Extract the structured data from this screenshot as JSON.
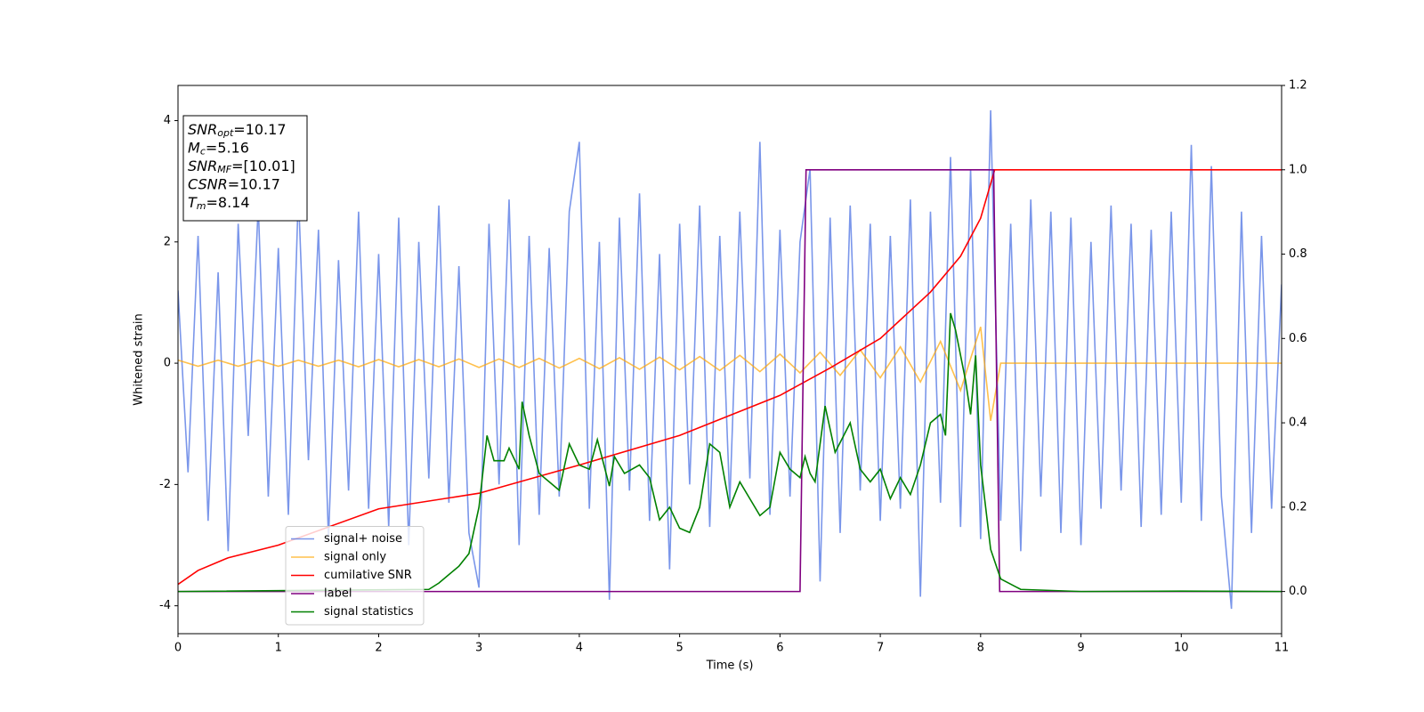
{
  "chart_data": {
    "type": "line",
    "xlabel": "Time (s)",
    "ylabel": "Whitened strain",
    "xlim": [
      0,
      11
    ],
    "xticks": [
      0,
      1,
      2,
      3,
      4,
      5,
      6,
      7,
      8,
      9,
      10,
      11
    ],
    "ylim": [
      -4.46,
      4.58
    ],
    "yticks": [
      -4,
      -2,
      0,
      2,
      4
    ],
    "y2lim": [
      -0.1,
      1.2
    ],
    "y2ticks": [
      {
        "value": 0,
        "label": "0.0"
      },
      0.2,
      0.4,
      0.6,
      0.8,
      {
        "value": 1,
        "label": "1.0"
      },
      1.2
    ],
    "legend": "lower left",
    "annotations": [
      {
        "main": "SNR",
        "sub": "opt",
        "rest": "=10.17"
      },
      {
        "main": "M",
        "sub": "c",
        "rest": "=5.16"
      },
      {
        "main": "SNR",
        "sub": "MF",
        "rest": "=[10.01]"
      },
      {
        "main": "CSNR",
        "rest": "=10.17"
      },
      {
        "main": "T",
        "sub": "m",
        "rest": "=8.14"
      }
    ],
    "series": [
      {
        "name": "signal+ noise",
        "color": "#4169e1",
        "x": [
          0,
          0.1,
          0.2,
          0.3,
          0.4,
          0.5,
          0.6,
          0.7,
          0.8,
          0.9,
          1,
          1.1,
          1.2,
          1.3,
          1.4,
          1.5,
          1.6,
          1.7,
          1.8,
          1.9,
          2,
          2.1,
          2.2,
          2.3,
          2.4,
          2.5,
          2.6,
          2.7,
          2.8,
          2.9,
          3,
          3.1,
          3.2,
          3.3,
          3.4,
          3.5,
          3.6,
          3.7,
          3.8,
          3.9,
          4,
          4.1,
          4.2,
          4.3,
          4.4,
          4.5,
          4.6,
          4.7,
          4.8,
          4.9,
          5,
          5.1,
          5.2,
          5.3,
          5.4,
          5.5,
          5.6,
          5.7,
          5.8,
          5.9,
          6,
          6.1,
          6.2,
          6.3,
          6.4,
          6.5,
          6.6,
          6.7,
          6.8,
          6.9,
          7,
          7.1,
          7.2,
          7.3,
          7.4,
          7.5,
          7.6,
          7.7,
          7.8,
          7.9,
          8,
          8.1,
          8.2,
          8.3,
          8.4,
          8.5,
          8.6,
          8.7,
          8.8,
          8.9,
          9,
          9.1,
          9.2,
          9.3,
          9.4,
          9.5,
          9.6,
          9.7,
          9.8,
          9.9,
          10,
          10.1,
          10.2,
          10.3,
          10.4,
          10.5,
          10.6,
          10.7,
          10.8,
          10.9,
          11
        ],
        "values": [
          1.2,
          -1.8,
          2.1,
          -2.6,
          1.5,
          -3.1,
          2.3,
          -1.2,
          2.6,
          -2.2,
          1.9,
          -2.5,
          2.8,
          -1.6,
          2.2,
          -2.9,
          1.7,
          -2.1,
          2.5,
          -2.4,
          1.8,
          -2.7,
          2.4,
          -3.0,
          2.0,
          -1.9,
          2.6,
          -2.3,
          1.6,
          -2.8,
          -3.7,
          2.3,
          -2.0,
          2.7,
          -3.0,
          2.1,
          -2.5,
          1.9,
          -2.2,
          2.5,
          3.65,
          -2.4,
          2.0,
          -3.9,
          2.4,
          -2.1,
          2.8,
          -2.6,
          1.8,
          -3.4,
          2.3,
          -2.0,
          2.6,
          -2.7,
          2.1,
          -2.3,
          2.5,
          -1.9,
          3.65,
          -2.5,
          2.2,
          -2.2,
          2.0,
          3.2,
          -3.6,
          2.4,
          -2.8,
          2.6,
          -2.1,
          2.3,
          -2.6,
          2.1,
          -2.4,
          2.7,
          -3.85,
          2.5,
          -2.3,
          3.4,
          -2.7,
          3.2,
          -2.9,
          4.17,
          -2.6,
          2.3,
          -3.1,
          2.7,
          -2.2,
          2.5,
          -2.8,
          2.4,
          -3.0,
          2.0,
          -2.4,
          2.6,
          -2.1,
          2.3,
          -2.7,
          2.2,
          -2.5,
          2.5,
          -2.3,
          3.6,
          -2.6,
          3.25,
          -2.2,
          -4.05,
          2.5,
          -2.8,
          2.1,
          -2.4,
          1.3
        ]
      },
      {
        "name": "signal only",
        "color": "#ffa500",
        "x": [
          0,
          0.2,
          0.4,
          0.6,
          0.8,
          1,
          1.2,
          1.4,
          1.6,
          1.8,
          2,
          2.2,
          2.4,
          2.6,
          2.8,
          3,
          3.2,
          3.4,
          3.6,
          3.8,
          4,
          4.2,
          4.4,
          4.6,
          4.8,
          5,
          5.2,
          5.4,
          5.6,
          5.8,
          6,
          6.2,
          6.4,
          6.6,
          6.8,
          7,
          7.2,
          7.4,
          7.6,
          7.8,
          8,
          8.1,
          8.2,
          11
        ],
        "values": [
          0.05,
          -0.05,
          0.05,
          -0.05,
          0.05,
          -0.05,
          0.05,
          -0.05,
          0.05,
          -0.06,
          0.06,
          -0.06,
          0.06,
          -0.06,
          0.07,
          -0.07,
          0.07,
          -0.07,
          0.08,
          -0.08,
          0.08,
          -0.09,
          0.09,
          -0.1,
          0.1,
          -0.11,
          0.11,
          -0.12,
          0.13,
          -0.14,
          0.15,
          -0.16,
          0.18,
          -0.2,
          0.22,
          -0.24,
          0.27,
          -0.31,
          0.36,
          -0.45,
          0.6,
          -0.95,
          0,
          0
        ]
      },
      {
        "name": "cumilative SNR",
        "color": "#ff0000",
        "axis": "y2",
        "x": [
          0,
          0.2,
          0.5,
          1,
          2,
          3,
          4,
          5,
          6,
          6.5,
          7,
          7.5,
          7.8,
          8,
          8.14,
          11
        ],
        "values": [
          0.017,
          0.05,
          0.08,
          0.11,
          0.196,
          0.233,
          0.3,
          0.37,
          0.465,
          0.53,
          0.6,
          0.71,
          0.795,
          0.885,
          1,
          1
        ]
      },
      {
        "name": "label",
        "color": "#800080",
        "axis": "y2",
        "x": [
          0,
          6.2,
          6.26,
          8.13,
          8.19,
          11
        ],
        "values": [
          0,
          0,
          1,
          1,
          0,
          0
        ]
      },
      {
        "name": "signal statistics",
        "color": "#008000",
        "axis": "y2",
        "x": [
          0,
          2.5,
          2.6,
          2.7,
          2.8,
          2.9,
          3,
          3.08,
          3.15,
          3.25,
          3.3,
          3.4,
          3.43,
          3.5,
          3.6,
          3.7,
          3.8,
          3.9,
          4,
          4.1,
          4.18,
          4.3,
          4.35,
          4.45,
          4.6,
          4.7,
          4.8,
          4.9,
          5,
          5.1,
          5.2,
          5.3,
          5.4,
          5.5,
          5.6,
          5.7,
          5.8,
          5.9,
          6,
          6.1,
          6.2,
          6.25,
          6.3,
          6.35,
          6.45,
          6.55,
          6.7,
          6.8,
          6.9,
          7,
          7.1,
          7.2,
          7.3,
          7.4,
          7.5,
          7.6,
          7.65,
          7.7,
          7.75,
          7.85,
          7.9,
          7.95,
          8,
          8.1,
          8.2,
          8.4,
          9,
          10,
          11
        ],
        "values": [
          0,
          0.005,
          0.02,
          0.04,
          0.06,
          0.09,
          0.2,
          0.37,
          0.31,
          0.31,
          0.34,
          0.29,
          0.45,
          0.37,
          0.28,
          0.26,
          0.24,
          0.35,
          0.3,
          0.29,
          0.36,
          0.25,
          0.32,
          0.28,
          0.3,
          0.27,
          0.17,
          0.2,
          0.15,
          0.14,
          0.2,
          0.35,
          0.33,
          0.2,
          0.26,
          0.22,
          0.18,
          0.2,
          0.33,
          0.29,
          0.27,
          0.32,
          0.28,
          0.26,
          0.44,
          0.33,
          0.4,
          0.29,
          0.26,
          0.29,
          0.22,
          0.27,
          0.23,
          0.3,
          0.4,
          0.42,
          0.37,
          0.66,
          0.62,
          0.5,
          0.42,
          0.56,
          0.3,
          0.1,
          0.03,
          0.005,
          0,
          0.001,
          0
        ]
      }
    ]
  }
}
